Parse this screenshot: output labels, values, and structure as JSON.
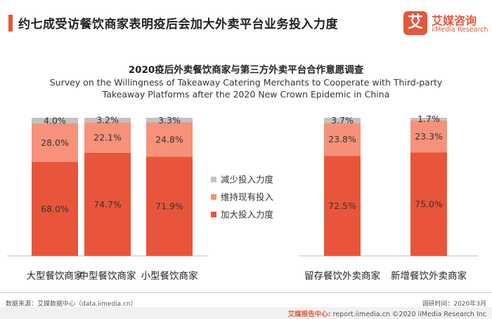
{
  "header": {
    "title": "约七成受访餐饮商家表明疫后会加大外卖平台业务投入力度"
  },
  "logo": {
    "mark": "艾",
    "cn": "艾媒咨询",
    "en": "iiMedia Research"
  },
  "chart_title": {
    "cn": "2020疫后外卖餐饮商家与第三方外卖平台合作意愿调查",
    "en_line1": "Survey on the Willingness of Takeaway Catering Merchants to Cooperate with Third-party",
    "en_line2": "Takeaway Platforms after the 2020 New Crown Epidemic in China"
  },
  "colors": {
    "increase": "#e8553a",
    "maintain": "#f7917a",
    "reduce": "#c2c2c2"
  },
  "chart_data": [
    {
      "type": "bar",
      "stacked": true,
      "categories": [
        "大型餐饮商家",
        "中型餐饮商家",
        "小型餐饮商家"
      ],
      "series": [
        {
          "name": "加大投入力度",
          "values": [
            68.0,
            74.7,
            71.9
          ]
        },
        {
          "name": "维持现有投入",
          "values": [
            28.0,
            22.1,
            24.8
          ]
        },
        {
          "name": "减少投入力度",
          "values": [
            4.0,
            3.2,
            3.3
          ]
        }
      ],
      "labels": [
        [
          "68.0%",
          "74.7%",
          "71.9%"
        ],
        [
          "28.0%",
          "22.1%",
          "24.8%"
        ],
        [
          "4.0%",
          "3.2%",
          "3.3%"
        ]
      ],
      "ylim": [
        0,
        100
      ],
      "grid": false
    },
    {
      "type": "bar",
      "stacked": true,
      "categories": [
        "留存餐饮外卖商家",
        "新增餐饮外卖商家"
      ],
      "series": [
        {
          "name": "加大投入力度",
          "values": [
            72.5,
            75.0
          ]
        },
        {
          "name": "维持现有投入",
          "values": [
            23.8,
            23.3
          ]
        },
        {
          "name": "减少投入力度",
          "values": [
            3.7,
            1.7
          ]
        }
      ],
      "labels": [
        [
          "72.5%",
          "75.0%"
        ],
        [
          "23.8%",
          "23.3%"
        ],
        [
          "3.7%",
          "1.7%"
        ]
      ],
      "ylim": [
        0,
        100
      ],
      "grid": false
    }
  ],
  "legend": {
    "placement": "center",
    "items": [
      {
        "label": "减少投入力度",
        "color": "#c2c2c2"
      },
      {
        "label": "维持现有投入",
        "color": "#f7917a"
      },
      {
        "label": "加大投入力度",
        "color": "#e8553a"
      }
    ]
  },
  "footer": {
    "source": "数据来源：艾媒数据中心（data.iimedia.cn）",
    "date": "调研时间：2020年3月",
    "bottom_mark": "艾媒报告中心:",
    "bottom_text": "report.iimedia.cn ©2020  iiMedia Research  Inc"
  }
}
